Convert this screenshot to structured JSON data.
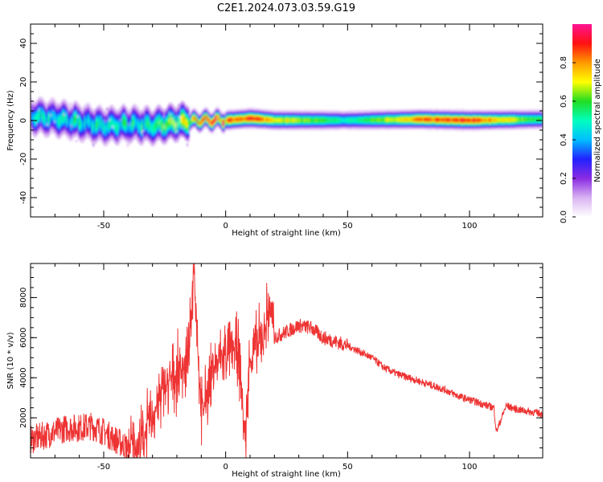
{
  "title": "C2E1.2024.073.03.59.G19",
  "chart_data": [
    {
      "type": "heatmap",
      "xlabel": "Height of straight line (km)",
      "ylabel": "Frequency (Hz)",
      "xlim": [
        -80,
        130
      ],
      "ylim": [
        -50,
        50
      ],
      "xticks": [
        -50,
        0,
        50,
        100
      ],
      "yticks": [
        -40,
        -20,
        0,
        20,
        40
      ],
      "colorbar": {
        "label": "Normalized spectral amplitude",
        "range": [
          0,
          1
        ],
        "ticks": [
          "0.0",
          "0.2",
          "0.4",
          "0.6",
          "0.8"
        ],
        "colormap": [
          "#ffffff",
          "#d9b3f2",
          "#8a2be2",
          "#2222ff",
          "#00bfff",
          "#00ffbf",
          "#22dd22",
          "#ffff00",
          "#ff9900",
          "#ff1111",
          "#ff1493"
        ]
      },
      "ridge": {
        "x": [
          -80,
          -70,
          -60,
          -50,
          -40,
          -30,
          -20,
          -10,
          0,
          10,
          20,
          50,
          80,
          100,
          130
        ],
        "frequency": [
          2,
          1,
          -1,
          -3,
          -2,
          -3,
          -1,
          0,
          0,
          1,
          0,
          0,
          0.5,
          0,
          0.5
        ],
        "peak_amplitude": [
          0.45,
          0.45,
          0.5,
          0.45,
          0.5,
          0.5,
          0.6,
          0.8,
          0.85,
          0.9,
          0.75,
          0.5,
          0.85,
          0.9,
          0.55
        ]
      }
    },
    {
      "type": "line",
      "xlabel": "Height of straight line (km)",
      "ylabel": "SNR (10 * v/v)",
      "xlim": [
        -80,
        130
      ],
      "ylim": [
        0,
        9700
      ],
      "xticks": [
        -50,
        0,
        50,
        100
      ],
      "yticks": [
        2000,
        4000,
        6000,
        8000
      ],
      "color": "#ee3333",
      "x": [
        -80,
        -75,
        -70,
        -65,
        -60,
        -55,
        -50,
        -45,
        -40,
        -35,
        -30,
        -25,
        -20,
        -15,
        -13,
        -10,
        -5,
        0,
        5,
        8,
        10,
        15,
        18,
        20,
        25,
        30,
        35,
        40,
        45,
        50,
        55,
        60,
        65,
        70,
        75,
        80,
        85,
        90,
        95,
        100,
        105,
        110,
        111,
        115,
        120,
        125,
        130
      ],
      "y": [
        900,
        1100,
        1300,
        1500,
        1500,
        1600,
        1300,
        900,
        500,
        700,
        2200,
        3500,
        4200,
        5000,
        9700,
        2000,
        4500,
        5200,
        5500,
        1000,
        5000,
        6000,
        7600,
        6000,
        6300,
        6600,
        6500,
        6000,
        5800,
        5600,
        5300,
        5000,
        4500,
        4200,
        4000,
        3800,
        3600,
        3400,
        3100,
        2900,
        2700,
        2500,
        1300,
        2600,
        2400,
        2300,
        2200
      ]
    }
  ]
}
